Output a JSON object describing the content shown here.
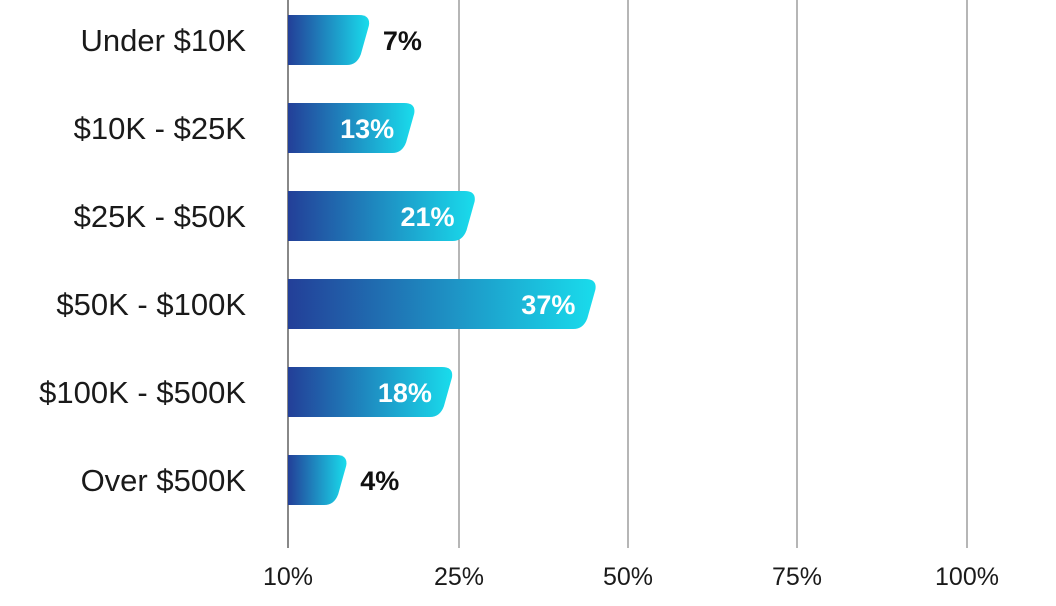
{
  "chart_data": {
    "type": "bar",
    "orientation": "horizontal",
    "categories": [
      "Under $10K",
      "$10K - $25K",
      "$25K - $50K",
      "$50K - $100K",
      "$100K - $500K",
      "Over $500K"
    ],
    "values": [
      7,
      13,
      21,
      37,
      18,
      4
    ],
    "value_labels": [
      "7%",
      "13%",
      "21%",
      "37%",
      "18%",
      "4%"
    ],
    "x_ticks": [
      "10%",
      "25%",
      "50%",
      "75%",
      "100%"
    ],
    "title": "",
    "xlabel": "",
    "ylabel": "",
    "grid": true,
    "legend": "none",
    "colors": {
      "bar_start": "#233f98",
      "bar_end": "#19dcec",
      "grid": "#4a4a4a"
    }
  }
}
